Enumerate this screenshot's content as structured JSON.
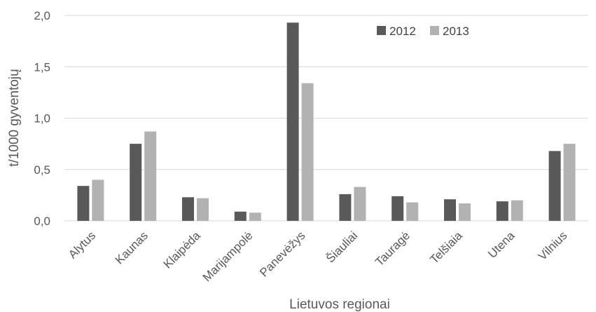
{
  "chart_data": {
    "type": "bar",
    "xlabel": "Lietuvos regionai",
    "ylabel": "t/1000 gyventojų",
    "ylim": [
      0,
      2.0
    ],
    "yticks": [
      "0,0",
      "0,5",
      "1,0",
      "1,5",
      "2,0"
    ],
    "ytick_values": [
      0,
      0.5,
      1.0,
      1.5,
      2.0
    ],
    "grid": true,
    "legend_position": "top-right",
    "categories": [
      "Alytus",
      "Kaunas",
      "Klaipėda",
      "Marijampolė",
      "Panevėžys",
      "Šiauliai",
      "Tauragė",
      "Telšiaia",
      "Utena",
      "Vilnius"
    ],
    "series": [
      {
        "name": "2012",
        "color": "#595959",
        "values": [
          0.34,
          0.75,
          0.23,
          0.09,
          1.93,
          0.26,
          0.24,
          0.21,
          0.19,
          0.68
        ]
      },
      {
        "name": "2013",
        "color": "#b2b2b2",
        "values": [
          0.4,
          0.87,
          0.22,
          0.08,
          1.34,
          0.33,
          0.18,
          0.17,
          0.2,
          0.75
        ]
      }
    ]
  }
}
